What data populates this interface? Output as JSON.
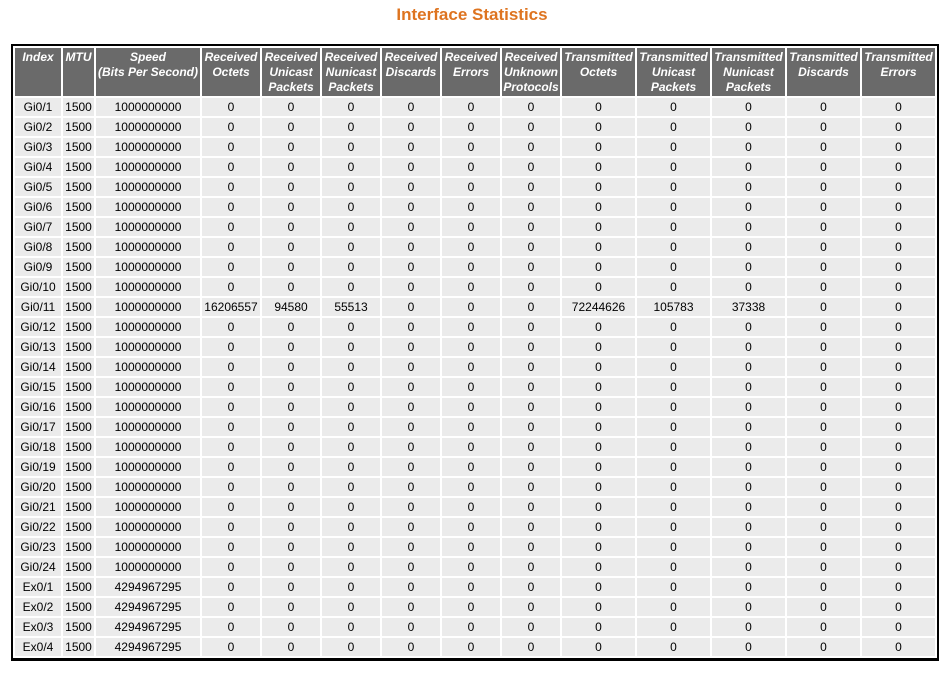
{
  "page": {
    "title": "Interface Statistics"
  },
  "colors": {
    "title_text": "#DE7420",
    "header_bg": "#6A6A6A",
    "header_text": "#FFFFFF",
    "row_bg": "#EBEBEB",
    "row_text": "#000000",
    "table_border": "#000000",
    "page_bg": "#FFFFFF"
  },
  "table": {
    "columns": [
      {
        "label": "Index"
      },
      {
        "label": "MTU"
      },
      {
        "label": "Speed\n(Bits Per Second)"
      },
      {
        "label": "Received\nOctets"
      },
      {
        "label": "Received\nUnicast\nPackets"
      },
      {
        "label": "Received\nNunicast\nPackets"
      },
      {
        "label": "Received\nDiscards"
      },
      {
        "label": "Received\nErrors"
      },
      {
        "label": "Received\nUnknown\nProtocols"
      },
      {
        "label": "Transmitted\nOctets"
      },
      {
        "label": "Transmitted\nUnicast\nPackets"
      },
      {
        "label": "Transmitted\nNunicast\nPackets"
      },
      {
        "label": "Transmitted\nDiscards"
      },
      {
        "label": "Transmitted\nErrors"
      }
    ],
    "rows": [
      [
        "Gi0/1",
        "1500",
        "1000000000",
        "0",
        "0",
        "0",
        "0",
        "0",
        "0",
        "0",
        "0",
        "0",
        "0",
        "0"
      ],
      [
        "Gi0/2",
        "1500",
        "1000000000",
        "0",
        "0",
        "0",
        "0",
        "0",
        "0",
        "0",
        "0",
        "0",
        "0",
        "0"
      ],
      [
        "Gi0/3",
        "1500",
        "1000000000",
        "0",
        "0",
        "0",
        "0",
        "0",
        "0",
        "0",
        "0",
        "0",
        "0",
        "0"
      ],
      [
        "Gi0/4",
        "1500",
        "1000000000",
        "0",
        "0",
        "0",
        "0",
        "0",
        "0",
        "0",
        "0",
        "0",
        "0",
        "0"
      ],
      [
        "Gi0/5",
        "1500",
        "1000000000",
        "0",
        "0",
        "0",
        "0",
        "0",
        "0",
        "0",
        "0",
        "0",
        "0",
        "0"
      ],
      [
        "Gi0/6",
        "1500",
        "1000000000",
        "0",
        "0",
        "0",
        "0",
        "0",
        "0",
        "0",
        "0",
        "0",
        "0",
        "0"
      ],
      [
        "Gi0/7",
        "1500",
        "1000000000",
        "0",
        "0",
        "0",
        "0",
        "0",
        "0",
        "0",
        "0",
        "0",
        "0",
        "0"
      ],
      [
        "Gi0/8",
        "1500",
        "1000000000",
        "0",
        "0",
        "0",
        "0",
        "0",
        "0",
        "0",
        "0",
        "0",
        "0",
        "0"
      ],
      [
        "Gi0/9",
        "1500",
        "1000000000",
        "0",
        "0",
        "0",
        "0",
        "0",
        "0",
        "0",
        "0",
        "0",
        "0",
        "0"
      ],
      [
        "Gi0/10",
        "1500",
        "1000000000",
        "0",
        "0",
        "0",
        "0",
        "0",
        "0",
        "0",
        "0",
        "0",
        "0",
        "0"
      ],
      [
        "Gi0/11",
        "1500",
        "1000000000",
        "16206557",
        "94580",
        "55513",
        "0",
        "0",
        "0",
        "72244626",
        "105783",
        "37338",
        "0",
        "0"
      ],
      [
        "Gi0/12",
        "1500",
        "1000000000",
        "0",
        "0",
        "0",
        "0",
        "0",
        "0",
        "0",
        "0",
        "0",
        "0",
        "0"
      ],
      [
        "Gi0/13",
        "1500",
        "1000000000",
        "0",
        "0",
        "0",
        "0",
        "0",
        "0",
        "0",
        "0",
        "0",
        "0",
        "0"
      ],
      [
        "Gi0/14",
        "1500",
        "1000000000",
        "0",
        "0",
        "0",
        "0",
        "0",
        "0",
        "0",
        "0",
        "0",
        "0",
        "0"
      ],
      [
        "Gi0/15",
        "1500",
        "1000000000",
        "0",
        "0",
        "0",
        "0",
        "0",
        "0",
        "0",
        "0",
        "0",
        "0",
        "0"
      ],
      [
        "Gi0/16",
        "1500",
        "1000000000",
        "0",
        "0",
        "0",
        "0",
        "0",
        "0",
        "0",
        "0",
        "0",
        "0",
        "0"
      ],
      [
        "Gi0/17",
        "1500",
        "1000000000",
        "0",
        "0",
        "0",
        "0",
        "0",
        "0",
        "0",
        "0",
        "0",
        "0",
        "0"
      ],
      [
        "Gi0/18",
        "1500",
        "1000000000",
        "0",
        "0",
        "0",
        "0",
        "0",
        "0",
        "0",
        "0",
        "0",
        "0",
        "0"
      ],
      [
        "Gi0/19",
        "1500",
        "1000000000",
        "0",
        "0",
        "0",
        "0",
        "0",
        "0",
        "0",
        "0",
        "0",
        "0",
        "0"
      ],
      [
        "Gi0/20",
        "1500",
        "1000000000",
        "0",
        "0",
        "0",
        "0",
        "0",
        "0",
        "0",
        "0",
        "0",
        "0",
        "0"
      ],
      [
        "Gi0/21",
        "1500",
        "1000000000",
        "0",
        "0",
        "0",
        "0",
        "0",
        "0",
        "0",
        "0",
        "0",
        "0",
        "0"
      ],
      [
        "Gi0/22",
        "1500",
        "1000000000",
        "0",
        "0",
        "0",
        "0",
        "0",
        "0",
        "0",
        "0",
        "0",
        "0",
        "0"
      ],
      [
        "Gi0/23",
        "1500",
        "1000000000",
        "0",
        "0",
        "0",
        "0",
        "0",
        "0",
        "0",
        "0",
        "0",
        "0",
        "0"
      ],
      [
        "Gi0/24",
        "1500",
        "1000000000",
        "0",
        "0",
        "0",
        "0",
        "0",
        "0",
        "0",
        "0",
        "0",
        "0",
        "0"
      ],
      [
        "Ex0/1",
        "1500",
        "4294967295",
        "0",
        "0",
        "0",
        "0",
        "0",
        "0",
        "0",
        "0",
        "0",
        "0",
        "0"
      ],
      [
        "Ex0/2",
        "1500",
        "4294967295",
        "0",
        "0",
        "0",
        "0",
        "0",
        "0",
        "0",
        "0",
        "0",
        "0",
        "0"
      ],
      [
        "Ex0/3",
        "1500",
        "4294967295",
        "0",
        "0",
        "0",
        "0",
        "0",
        "0",
        "0",
        "0",
        "0",
        "0",
        "0"
      ],
      [
        "Ex0/4",
        "1500",
        "4294967295",
        "0",
        "0",
        "0",
        "0",
        "0",
        "0",
        "0",
        "0",
        "0",
        "0",
        "0"
      ]
    ]
  }
}
